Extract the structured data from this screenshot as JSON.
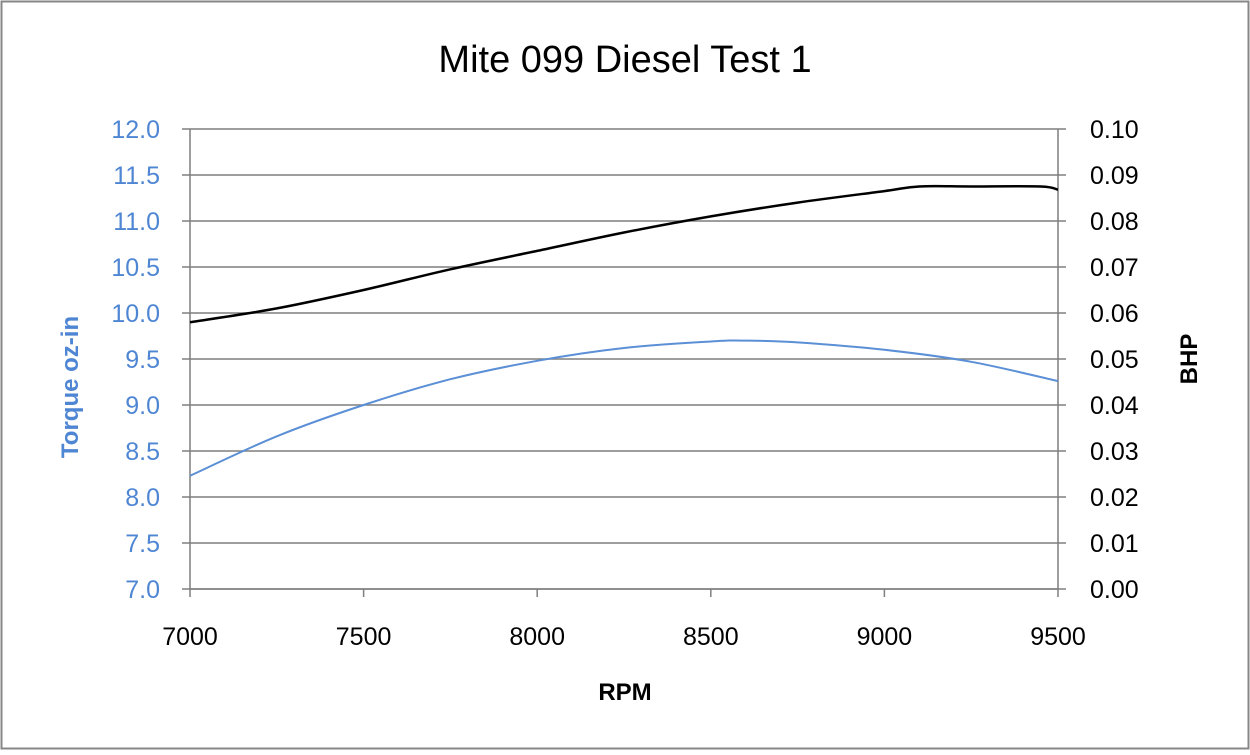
{
  "chart_data": {
    "type": "line",
    "title": "Mite 099 Diesel Test 1",
    "xlabel": "RPM",
    "ylabel_left": "Torque  oz-in",
    "ylabel_right": "BHP",
    "xlim": [
      7000,
      9500
    ],
    "ylim_left": [
      7.0,
      12.0
    ],
    "ylim_right": [
      0.0,
      0.1
    ],
    "x_ticks": [
      "7000",
      "7500",
      "8000",
      "8500",
      "9000",
      "9500"
    ],
    "y_left_ticks": [
      "12.0",
      "11.5",
      "11.0",
      "10.5",
      "10.0",
      "9.5",
      "9.0",
      "8.5",
      "8.0",
      "7.5",
      "7.0"
    ],
    "y_right_ticks": [
      "0.10",
      "0.09",
      "0.08",
      "0.07",
      "0.06",
      "0.05",
      "0.04",
      "0.03",
      "0.02",
      "0.01",
      "0.00"
    ],
    "grid": true,
    "colors": {
      "torque": "#5b8fd6",
      "bhp": "#000000",
      "left_axis_text": "#4f86d3",
      "grid": "#7f7f7f",
      "border": "#878787"
    },
    "series": [
      {
        "axis": "left",
        "x": [
          7000,
          7250,
          7500,
          7750,
          8000,
          8250,
          8500,
          8600,
          8750,
          9000,
          9250,
          9500
        ],
        "values": [
          8.23,
          8.66,
          9.0,
          9.28,
          9.48,
          9.62,
          9.69,
          9.7,
          9.68,
          9.6,
          9.47,
          9.26
        ]
      },
      {
        "axis": "right",
        "x": [
          7000,
          7250,
          7500,
          7750,
          8000,
          8250,
          8500,
          8750,
          9000,
          9100,
          9250,
          9450,
          9500
        ],
        "values": [
          0.058,
          0.061,
          0.065,
          0.0695,
          0.0735,
          0.0775,
          0.081,
          0.084,
          0.0865,
          0.0875,
          0.0875,
          0.0875,
          0.0868
        ]
      }
    ]
  }
}
